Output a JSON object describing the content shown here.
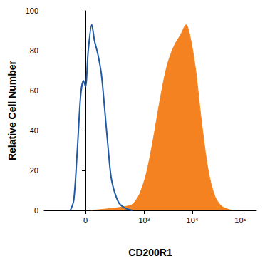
{
  "chart_data": {
    "type": "histogram",
    "x_label": "CD200R1",
    "y_label": "Relative Cell Number",
    "xlim": [
      -430,
      213000
    ],
    "xticks": [
      0,
      {
        "value": 1000,
        "label": "10³"
      },
      {
        "value": 10000,
        "label": "10⁴"
      },
      {
        "value": 100000,
        "label": "10⁵"
      }
    ],
    "ylim": [
      0,
      100
    ],
    "yticks": [
      0,
      20,
      40,
      60,
      80,
      100
    ],
    "grid": false,
    "series": [
      {
        "type": "line",
        "color": "#1f5aa6",
        "x": [
          -96,
          -72,
          -49,
          -28,
          -12,
          0,
          16,
          37,
          54,
          77,
          102,
          129,
          161,
          195,
          283,
          403,
          566
        ],
        "values": [
          0,
          5,
          30,
          58,
          65,
          62,
          80,
          93,
          85,
          78,
          68,
          50,
          30,
          15,
          4,
          1,
          0
        ]
      },
      {
        "type": "area",
        "color": "#f58220",
        "x": [
          32,
          195,
          403,
          566,
          793,
          1096,
          1527,
          2120,
          2950,
          4110,
          5710,
          7420,
          9330,
          11740,
          15370,
          21300,
          29400,
          41000,
          67600
        ],
        "values": [
          0,
          1,
          2,
          3,
          8,
          18,
          35,
          55,
          72,
          82,
          88,
          93,
          85,
          70,
          45,
          20,
          7,
          2,
          0
        ]
      }
    ]
  }
}
